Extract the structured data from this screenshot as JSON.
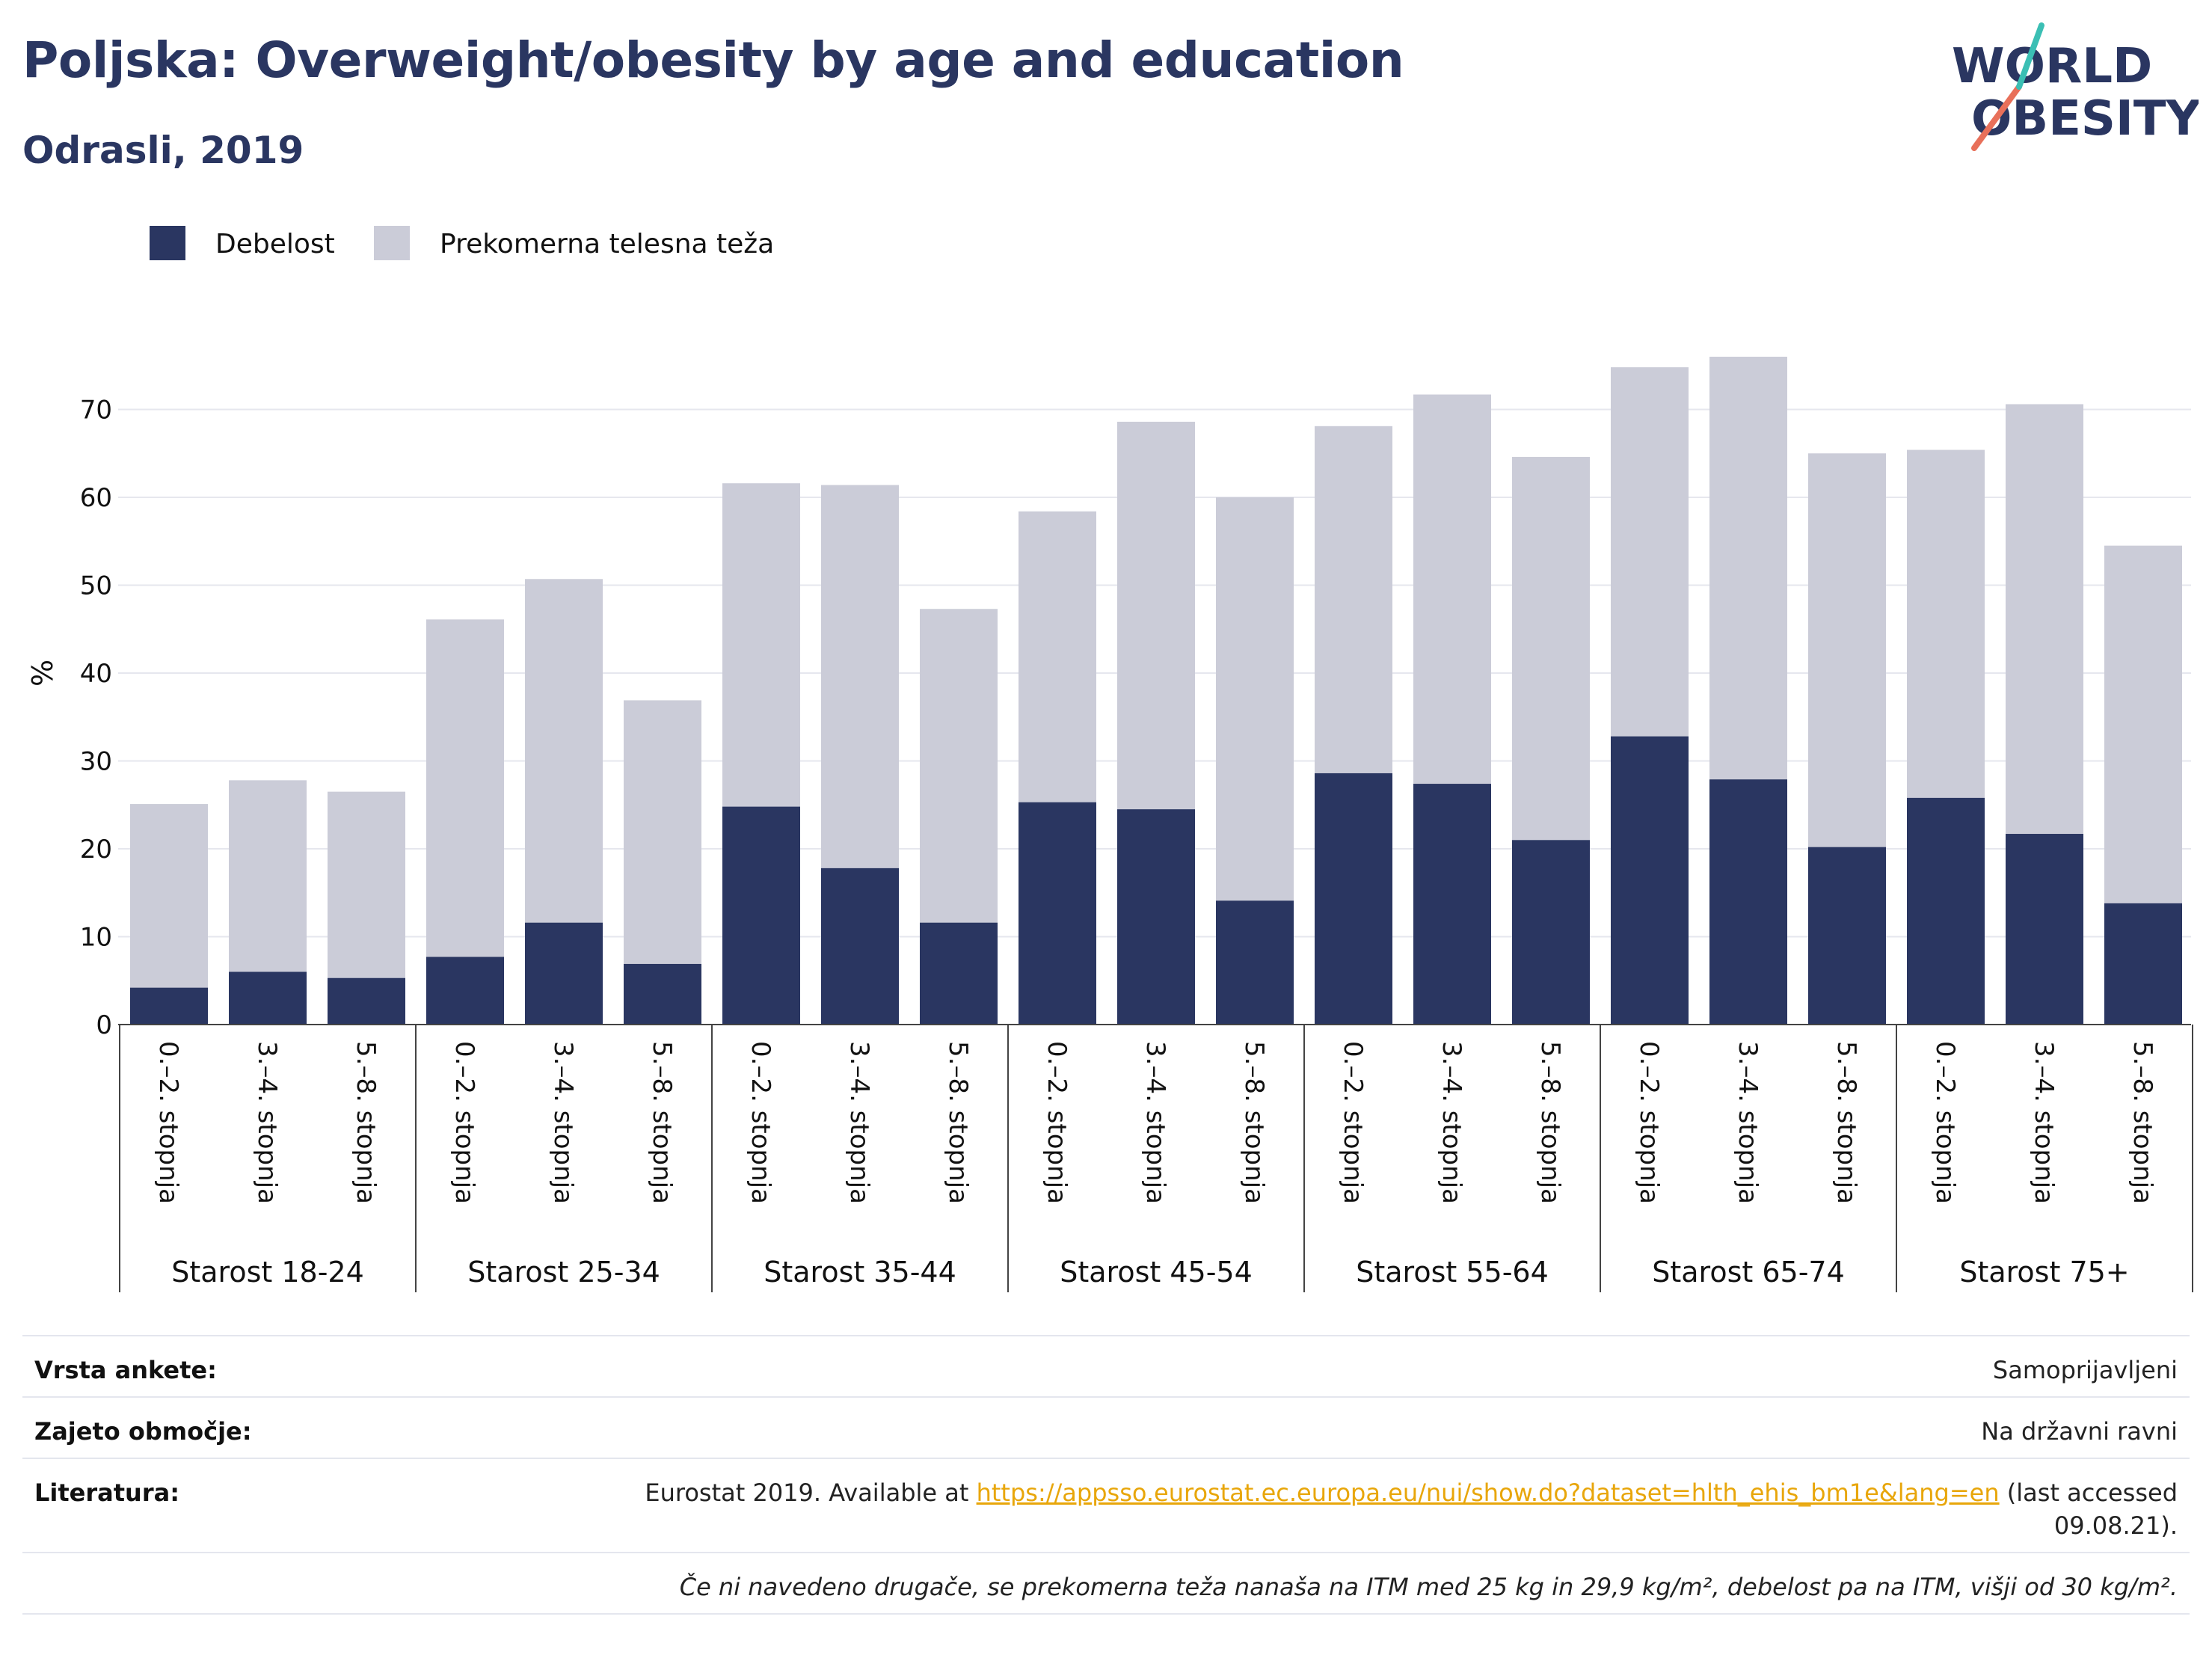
{
  "header": {
    "title": "Poljska: Overweight/obesity by age and education",
    "subtitle": "Odrasli, 2019",
    "logo_line1": "WORLD",
    "logo_line2": "OBESITY"
  },
  "colors": {
    "obesity": "#2a3661",
    "overweight": "#cbccd8",
    "title": "#2a3661",
    "link": "#e8a60a"
  },
  "chart_data": {
    "type": "bar",
    "stacked": true,
    "ylabel": "%",
    "ylim": [
      0,
      80
    ],
    "yticks": [
      0,
      10,
      20,
      30,
      40,
      50,
      60,
      70
    ],
    "grid": true,
    "legend_position": "top-left",
    "groups": [
      "Starost 18-24",
      "Starost 25-34",
      "Starost 35-44",
      "Starost 45-54",
      "Starost 55-64",
      "Starost 65-74",
      "Starost 75+"
    ],
    "categories": [
      "0.–2. stopnja",
      "3.–4. stopnja",
      "5.–8. stopnja"
    ],
    "series": [
      {
        "name": "Debelost",
        "color": "#2a3661",
        "values": [
          [
            4.2,
            6.0,
            5.3
          ],
          [
            7.7,
            11.6,
            6.9
          ],
          [
            24.8,
            17.8,
            11.6
          ],
          [
            25.3,
            24.5,
            14.1
          ],
          [
            28.6,
            27.4,
            21.0
          ],
          [
            32.8,
            27.9,
            20.2
          ],
          [
            25.8,
            21.7,
            13.8
          ]
        ]
      },
      {
        "name": "Prekomerna telesna teža",
        "color": "#cbccd8",
        "values": [
          [
            20.9,
            21.8,
            21.2
          ],
          [
            38.4,
            39.1,
            30.0
          ],
          [
            36.8,
            43.6,
            35.7
          ],
          [
            33.1,
            44.1,
            45.9
          ],
          [
            39.5,
            44.3,
            43.6
          ],
          [
            42.0,
            48.1,
            44.8
          ],
          [
            39.6,
            48.9,
            40.7
          ]
        ]
      }
    ]
  },
  "info": {
    "survey_label": "Vrsta ankete:",
    "survey_value": "Samoprijavljeni",
    "coverage_label": "Zajeto območje:",
    "coverage_value": "Na državni ravni",
    "references_label": "Literatura:",
    "references_text_before": "Eurostat 2019. Available at ",
    "references_link": "https://appsso.eurostat.ec.europa.eu/nui/show.do?dataset=hlth_ehis_bm1e&lang=en",
    "references_text_after": " (last accessed",
    "references_line2": "09.08.21).",
    "note": "Če ni navedeno drugače, se prekomerna teža nanaša na ITM med 25 kg in 29,9 kg/m², debelost pa na ITM, višji od 30 kg/m²."
  }
}
